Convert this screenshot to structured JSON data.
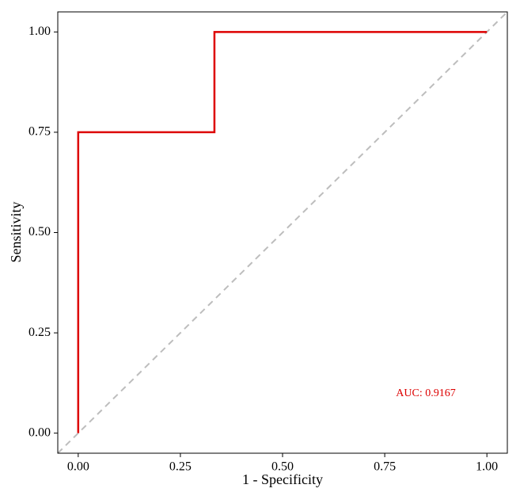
{
  "chart_data": {
    "type": "line",
    "xlabel": "1 - Specificity",
    "ylabel": "Sensitivity",
    "annotation": "AUC: 0.9167",
    "x": [
      0,
      0,
      0.3333,
      0.3333,
      1
    ],
    "values": [
      0,
      0.75,
      0.75,
      1,
      1
    ],
    "color": "#dd0000",
    "xlim": [
      -0.05,
      1.05
    ],
    "ylim": [
      -0.05,
      1.05
    ],
    "xticks": [
      {
        "value": 0,
        "label": "0.00"
      },
      {
        "value": 0.25,
        "label": "0.25"
      },
      {
        "value": 0.5,
        "label": "0.50"
      },
      {
        "value": 0.75,
        "label": "0.75"
      },
      {
        "value": 1,
        "label": "1.00"
      }
    ],
    "yticks": [
      {
        "value": 0,
        "label": "0.00"
      },
      {
        "value": 0.25,
        "label": "0.25"
      },
      {
        "value": 0.5,
        "label": "0.50"
      },
      {
        "value": 0.75,
        "label": "0.75"
      },
      {
        "value": 1,
        "label": "1.00"
      }
    ],
    "grid": false
  }
}
